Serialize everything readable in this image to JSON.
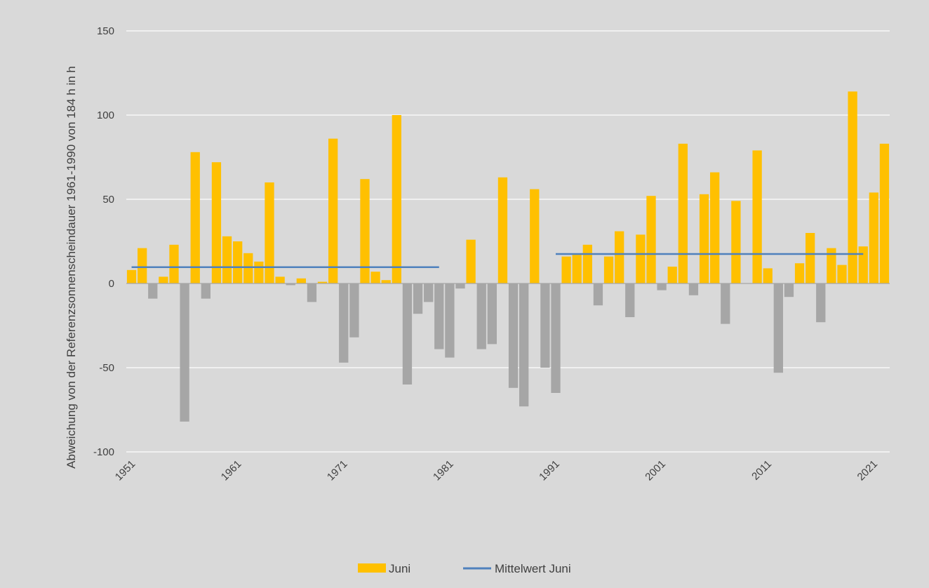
{
  "chart_data": {
    "type": "bar",
    "ylabel": "Abweichung von der Referenzsonnenscheindauer 1961-1990 von 184 h in h",
    "ylim": [
      -100,
      150
    ],
    "y_ticks": [
      "150",
      "100",
      "50",
      "0",
      "-50",
      "-100"
    ],
    "y_tick_values": [
      150,
      100,
      50,
      0,
      -50,
      -100
    ],
    "x_tick_labels": [
      "1951",
      "1961",
      "1971",
      "1981",
      "1991",
      "2001",
      "2011",
      "2021"
    ],
    "x_tick_years": [
      1951,
      1961,
      1971,
      1981,
      1991,
      2001,
      2011,
      2021
    ],
    "grid": true,
    "legend_position": "bottom",
    "colors": {
      "positive": "#ffc000",
      "negative": "#a6a6a6",
      "mean": "#4f81bd",
      "grid": "#ffffff",
      "background": "#d9d9d9",
      "axis": "#a6a6a6"
    },
    "categories": [
      1951,
      1952,
      1953,
      1954,
      1955,
      1956,
      1957,
      1958,
      1959,
      1960,
      1961,
      1962,
      1963,
      1964,
      1965,
      1966,
      1967,
      1968,
      1969,
      1970,
      1971,
      1972,
      1973,
      1974,
      1975,
      1976,
      1977,
      1978,
      1979,
      1980,
      1981,
      1982,
      1983,
      1984,
      1985,
      1986,
      1987,
      1988,
      1989,
      1990,
      1991,
      1992,
      1993,
      1994,
      1995,
      1996,
      1997,
      1998,
      1999,
      2000,
      2001,
      2002,
      2003,
      2004,
      2005,
      2006,
      2007,
      2008,
      2009,
      2010,
      2011,
      2012,
      2013,
      2014,
      2015,
      2016,
      2017,
      2018,
      2019,
      2020,
      2021,
      2022
    ],
    "series": [
      {
        "name": "Juni",
        "values": [
          8,
          21,
          -9,
          4,
          23,
          -82,
          78,
          -9,
          72,
          28,
          25,
          18,
          13,
          60,
          4,
          -1,
          3,
          -11,
          1,
          86,
          -47,
          -32,
          62,
          7,
          2,
          100,
          -60,
          -18,
          -11,
          -39,
          -44,
          -3,
          26,
          -39,
          -36,
          63,
          -62,
          -73,
          56,
          -50,
          -65,
          16,
          17,
          23,
          -13,
          16,
          31,
          -20,
          29,
          52,
          -4,
          10,
          83,
          -7,
          53,
          66,
          -24,
          49,
          0,
          79,
          9,
          -53,
          -8,
          12,
          30,
          -23,
          21,
          11,
          114,
          22,
          54,
          83
        ]
      },
      {
        "name": "Mittelwert Juni",
        "segments": [
          {
            "x_start": 1951,
            "x_end": 1980,
            "value": 9.7
          },
          {
            "x_start": 1991,
            "x_end": 2020,
            "value": 17.5
          }
        ]
      }
    ]
  }
}
